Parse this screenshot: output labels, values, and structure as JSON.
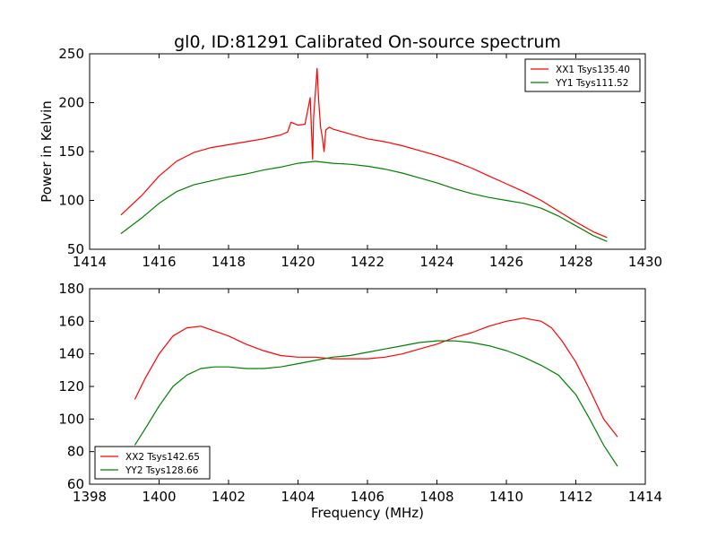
{
  "figure": {
    "title": "gl0, ID:81291 Calibrated On-source spectrum",
    "ylabel": "Power in Kelvin",
    "xlabel": "Frequency (MHz)"
  },
  "chart_data": [
    {
      "type": "line",
      "title": "gl0, ID:81291 Calibrated On-source spectrum",
      "xlabel": "",
      "ylabel": "Power in Kelvin",
      "xlim": [
        1414,
        1430
      ],
      "ylim": [
        50,
        250
      ],
      "xticks": [
        1414,
        1416,
        1418,
        1420,
        1422,
        1424,
        1426,
        1428,
        1430
      ],
      "yticks": [
        50,
        100,
        150,
        200,
        250
      ],
      "legend": "top-right",
      "grid": false,
      "series": [
        {
          "name": "XX1 Tsys135.40",
          "color": "#ff0000",
          "x": [
            1414.9,
            1415.5,
            1416.0,
            1416.5,
            1417.0,
            1417.5,
            1418.0,
            1418.5,
            1419.0,
            1419.5,
            1419.7,
            1419.8,
            1420.0,
            1420.2,
            1420.35,
            1420.42,
            1420.45,
            1420.5,
            1420.55,
            1420.6,
            1420.65,
            1420.7,
            1420.75,
            1420.8,
            1420.9,
            1421.0,
            1421.5,
            1422.0,
            1422.5,
            1423.0,
            1423.5,
            1424.0,
            1424.5,
            1425.0,
            1425.5,
            1426.0,
            1426.5,
            1427.0,
            1427.5,
            1428.0,
            1428.5,
            1428.9
          ],
          "y": [
            85,
            105,
            125,
            140,
            149,
            154,
            157,
            160,
            163,
            167,
            170,
            180,
            177,
            178,
            205,
            142,
            185,
            210,
            235,
            200,
            175,
            165,
            150,
            172,
            175,
            173,
            168,
            163,
            160,
            156,
            151,
            146,
            140,
            133,
            125,
            117,
            109,
            100,
            89,
            78,
            68,
            62
          ]
        },
        {
          "name": "YY1 Tsys111.52",
          "color": "#008000",
          "x": [
            1414.9,
            1415.5,
            1416.0,
            1416.5,
            1417.0,
            1417.5,
            1418.0,
            1418.5,
            1419.0,
            1419.5,
            1420.0,
            1420.5,
            1421.0,
            1421.5,
            1422.0,
            1422.5,
            1423.0,
            1423.5,
            1424.0,
            1424.5,
            1425.0,
            1425.5,
            1426.0,
            1426.5,
            1427.0,
            1427.5,
            1428.0,
            1428.5,
            1428.9
          ],
          "y": [
            66,
            82,
            97,
            109,
            116,
            120,
            124,
            127,
            131,
            134,
            138,
            140,
            138,
            137,
            135,
            132,
            128,
            123,
            118,
            112,
            107,
            103,
            100,
            97,
            92,
            84,
            74,
            64,
            58
          ]
        }
      ]
    },
    {
      "type": "line",
      "title": "",
      "xlabel": "Frequency (MHz)",
      "ylabel": "",
      "xlim": [
        1398,
        1414
      ],
      "ylim": [
        60,
        180
      ],
      "xticks": [
        1398,
        1400,
        1402,
        1404,
        1406,
        1408,
        1410,
        1412,
        1414
      ],
      "yticks": [
        60,
        80,
        100,
        120,
        140,
        160,
        180
      ],
      "legend": "bottom-left",
      "grid": false,
      "series": [
        {
          "name": "XX2 Tsys142.65",
          "color": "#ff0000",
          "x": [
            1399.3,
            1399.6,
            1400.0,
            1400.4,
            1400.8,
            1401.2,
            1401.6,
            1402.0,
            1402.5,
            1403.0,
            1403.5,
            1404.0,
            1404.5,
            1405.0,
            1405.5,
            1406.0,
            1406.5,
            1407.0,
            1407.5,
            1408.0,
            1408.5,
            1409.0,
            1409.5,
            1410.0,
            1410.5,
            1411.0,
            1411.3,
            1411.6,
            1412.0,
            1412.4,
            1412.8,
            1413.2
          ],
          "y": [
            112,
            125,
            140,
            151,
            156,
            157,
            154,
            151,
            146,
            142,
            139,
            138,
            138,
            137,
            137,
            137,
            138,
            140,
            143,
            146,
            150,
            153,
            157,
            160,
            162,
            160,
            156,
            148,
            135,
            118,
            100,
            89
          ]
        },
        {
          "name": "YY2 Tsys128.66",
          "color": "#008000",
          "x": [
            1399.3,
            1399.6,
            1400.0,
            1400.4,
            1400.8,
            1401.2,
            1401.6,
            1402.0,
            1402.5,
            1403.0,
            1403.5,
            1404.0,
            1404.5,
            1405.0,
            1405.5,
            1406.0,
            1406.5,
            1407.0,
            1407.5,
            1408.0,
            1408.5,
            1409.0,
            1409.5,
            1410.0,
            1410.5,
            1411.0,
            1411.5,
            1412.0,
            1412.4,
            1412.8,
            1413.2
          ],
          "y": [
            84,
            94,
            108,
            120,
            127,
            131,
            132,
            132,
            131,
            131,
            132,
            134,
            136,
            138,
            139,
            141,
            143,
            145,
            147,
            148,
            148,
            147,
            145,
            142,
            138,
            133,
            127,
            115,
            100,
            84,
            71
          ]
        }
      ]
    }
  ]
}
